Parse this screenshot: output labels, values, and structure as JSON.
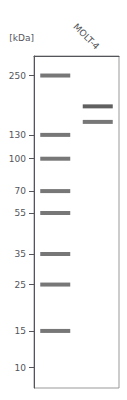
{
  "chart_data": {
    "type": "scatter",
    "marker": "rect",
    "ylabel": "[kDa]",
    "categories": [
      null,
      "MOLT-4"
    ],
    "series": [
      {
        "color": "#555555",
        "x": [
          null,
          null,
          null,
          null,
          null,
          null,
          null,
          null
        ],
        "values": [
          250,
          130,
          100,
          70,
          55,
          35,
          25,
          15
        ]
      },
      {
        "colors": [
          "#383838",
          "#555555"
        ],
        "x": [
          "MOLT-4",
          "MOLT-4"
        ],
        "values": [
          178,
          150
        ]
      }
    ],
    "log": "y",
    "ylim": [
      8,
      310
    ],
    "yticks": [
      250,
      130,
      100,
      70,
      55,
      35,
      25,
      15,
      10
    ],
    "grid": false
  }
}
